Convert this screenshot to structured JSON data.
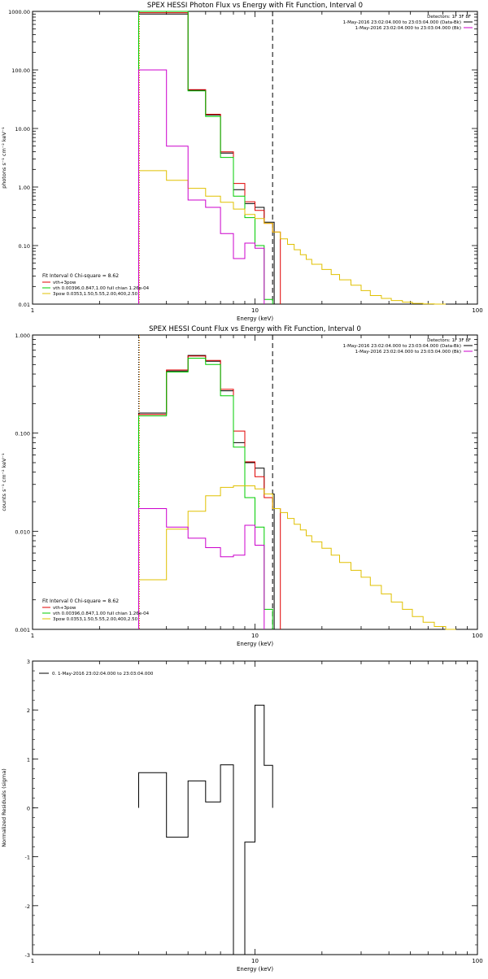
{
  "chart_data": [
    {
      "type": "line",
      "title": "SPEX HESSI Photon Flux vs Energy with Fit Function, Interval 0",
      "xlabel": "Energy (keV)",
      "ylabel": "photons s⁻¹ cm⁻² keV⁻¹",
      "xscale": "log",
      "yscale": "log",
      "xlim": [
        1,
        100
      ],
      "ylim": [
        0.01,
        1000
      ],
      "x_ticks": [
        1,
        10,
        100
      ],
      "x_tick_labels": [
        "1",
        "10",
        "100"
      ],
      "y_ticks": [
        0.01,
        0.1,
        1,
        10,
        100,
        1000
      ],
      "y_tick_labels": [
        "0.01",
        "0.10",
        "1.00",
        "10.00",
        "100.00",
        "1000.00"
      ],
      "detectors_label": "Detectors: 1F 3F 8F",
      "info_lines": [
        {
          "text": "1-May-2016 23:02:04.000 to 23:03:04.000 (Data-Bk)",
          "color": "#000000"
        },
        {
          "text": "1-May-2016 23:02:04.000 to 23:03:04.000 (Bk)",
          "color": "#cc00cc"
        }
      ],
      "fit_label": "Fit Interval 0   Chi-square = 8.62",
      "legend_placement": "bottom-left",
      "vlines": [
        {
          "x": 3.0,
          "style": "dotted",
          "color": "#000000"
        },
        {
          "x": 3.0,
          "style": "dotted",
          "color": "#e08000"
        },
        {
          "x": 12.0,
          "style": "dashed",
          "color": "#000000"
        }
      ],
      "series": [
        {
          "name": "",
          "color": "#000000",
          "legend": false,
          "edges": [
            3,
            4,
            5,
            6,
            7,
            8,
            9,
            10,
            11,
            12.2
          ],
          "values": [
            900,
            900,
            45,
            17,
            3.8,
            0.9,
            0.52,
            0.45,
            0.25
          ]
        },
        {
          "name": "vth+3pow",
          "color": "#e00000",
          "legend": true,
          "edges": [
            3,
            4,
            5,
            6,
            7,
            8,
            9,
            10,
            11,
            12,
            13
          ],
          "values": [
            950,
            950,
            46,
            17.5,
            4,
            1.15,
            0.56,
            0.4,
            0.24,
            0.17
          ]
        },
        {
          "name": "vth 0.00396,0.847,1.00  full chian 1.26e-04",
          "color": "#00cc00",
          "legend": true,
          "edges": [
            3,
            4,
            5,
            6,
            7,
            8,
            9,
            10,
            11,
            12
          ],
          "values": [
            1000,
            1000,
            44,
            16,
            3.2,
            0.7,
            0.3,
            0.1,
            0.012
          ]
        },
        {
          "name": "3pow 0.0353,1.50,5.55,2.00,400,2.50",
          "color": "#e0c000",
          "legend": true,
          "edges": [
            3,
            4,
            5,
            6,
            7,
            8,
            9,
            10,
            11,
            12,
            13,
            14,
            15,
            16,
            17,
            18,
            20,
            22,
            24,
            27,
            30,
            33,
            37,
            41,
            46,
            51,
            57,
            64,
            72
          ],
          "values": [
            1.9,
            1.3,
            0.95,
            0.7,
            0.55,
            0.42,
            0.34,
            0.29,
            0.24,
            0.17,
            0.13,
            0.105,
            0.085,
            0.07,
            0.058,
            0.048,
            0.039,
            0.032,
            0.026,
            0.021,
            0.017,
            0.014,
            0.0125,
            0.0115,
            0.0108,
            0.0103,
            0.0101,
            0.01
          ]
        },
        {
          "name": "",
          "color": "#cc00cc",
          "legend": false,
          "edges": [
            3,
            4,
            5,
            6,
            7,
            8,
            9,
            10,
            11
          ],
          "values": [
            100,
            5,
            0.6,
            0.45,
            0.16,
            0.06,
            0.11,
            0.09
          ]
        }
      ]
    },
    {
      "type": "line",
      "title": "SPEX HESSI Count Flux vs Energy with Fit Function, Interval 0",
      "xlabel": "Energy (keV)",
      "ylabel": "counts s⁻¹ cm⁻² keV⁻¹",
      "xscale": "log",
      "yscale": "log",
      "xlim": [
        1,
        100
      ],
      "ylim": [
        0.001,
        1
      ],
      "x_ticks": [
        1,
        10,
        100
      ],
      "x_tick_labels": [
        "1",
        "10",
        "100"
      ],
      "y_ticks": [
        0.001,
        0.01,
        0.1,
        1
      ],
      "y_tick_labels": [
        "0.001",
        "0.010",
        "0.100",
        "1.000"
      ],
      "detectors_label": "Detectors: 1F 3F 8F",
      "info_lines": [
        {
          "text": "1-May-2016 23:02:04.000 to 23:03:04.000 (Data-Bk)",
          "color": "#000000"
        },
        {
          "text": "1-May-2016 23:02:04.000 to 23:03:04.000 (Bk)",
          "color": "#cc00cc"
        }
      ],
      "fit_label": "Fit Interval 0   Chi-square = 8.62",
      "legend_placement": "bottom-left",
      "vlines": [
        {
          "x": 3.0,
          "style": "dotted",
          "color": "#000000"
        },
        {
          "x": 3.0,
          "style": "dotted",
          "color": "#e08000"
        },
        {
          "x": 12.0,
          "style": "dashed",
          "color": "#000000"
        }
      ],
      "series": [
        {
          "name": "",
          "color": "#000000",
          "legend": false,
          "edges": [
            3,
            4,
            5,
            6,
            7,
            8,
            9,
            10,
            11,
            12.2
          ],
          "values": [
            0.16,
            0.43,
            0.62,
            0.54,
            0.27,
            0.08,
            0.05,
            0.044,
            0.024
          ]
        },
        {
          "name": "vth+3pow",
          "color": "#e00000",
          "legend": true,
          "edges": [
            3,
            4,
            5,
            6,
            7,
            8,
            9,
            10,
            11,
            12,
            13
          ],
          "values": [
            0.155,
            0.44,
            0.61,
            0.55,
            0.28,
            0.105,
            0.051,
            0.036,
            0.022,
            0.017
          ]
        },
        {
          "name": "vth 0.00396,0.847,1.00  full chian 1.26e-04",
          "color": "#00cc00",
          "legend": true,
          "edges": [
            3,
            4,
            5,
            6,
            7,
            8,
            9,
            10,
            11,
            12
          ],
          "values": [
            0.15,
            0.42,
            0.58,
            0.5,
            0.24,
            0.072,
            0.022,
            0.011,
            0.0016
          ]
        },
        {
          "name": "3pow 0.0353,1.50,5.55,2.00,400,2.50",
          "color": "#e0c000",
          "legend": true,
          "edges": [
            3,
            4,
            5,
            6,
            7,
            8,
            9,
            10,
            11,
            12,
            13,
            14,
            15,
            16,
            17,
            18,
            20,
            22,
            24,
            27,
            30,
            33,
            37,
            41,
            46,
            51,
            57,
            64,
            72,
            80
          ],
          "values": [
            0.0032,
            0.0105,
            0.016,
            0.023,
            0.028,
            0.029,
            0.029,
            0.027,
            0.024,
            0.017,
            0.0155,
            0.0135,
            0.0118,
            0.0103,
            0.009,
            0.0078,
            0.0067,
            0.0057,
            0.0048,
            0.004,
            0.0034,
            0.0028,
            0.0023,
            0.0019,
            0.0016,
            0.00135,
            0.00118,
            0.00107,
            0.001
          ]
        },
        {
          "name": "",
          "color": "#cc00cc",
          "legend": false,
          "edges": [
            3,
            4,
            5,
            6,
            7,
            8,
            9,
            10,
            11
          ],
          "values": [
            0.017,
            0.011,
            0.0085,
            0.0068,
            0.0055,
            0.0057,
            0.0115,
            0.0072
          ]
        }
      ]
    },
    {
      "type": "line",
      "title": "",
      "xlabel": "Energy (keV)",
      "ylabel": "Normalized Residuals (sigma)",
      "xscale": "log",
      "yscale": "linear",
      "xlim": [
        1,
        100
      ],
      "ylim": [
        -3,
        3
      ],
      "x_ticks": [
        1,
        10,
        100
      ],
      "x_tick_labels": [
        "1",
        "10",
        "100"
      ],
      "y_ticks": [
        -3,
        -2,
        -1,
        0,
        1,
        2,
        3
      ],
      "y_tick_labels": [
        "-3",
        "-2",
        "-1",
        "0",
        "1",
        "2",
        "3"
      ],
      "legend_placement": "top-left",
      "vlines": [],
      "series": [
        {
          "name": "0. 1-May-2016 23:02:04.000 to 23:03:04.000",
          "color": "#000000",
          "legend": true,
          "edges": [
            3,
            4,
            5,
            6,
            7,
            8,
            9,
            10,
            11,
            12
          ],
          "values": [
            0.72,
            -0.6,
            0.55,
            0.12,
            0.88,
            -3.0,
            -0.7,
            2.1,
            0.87
          ]
        }
      ]
    }
  ]
}
